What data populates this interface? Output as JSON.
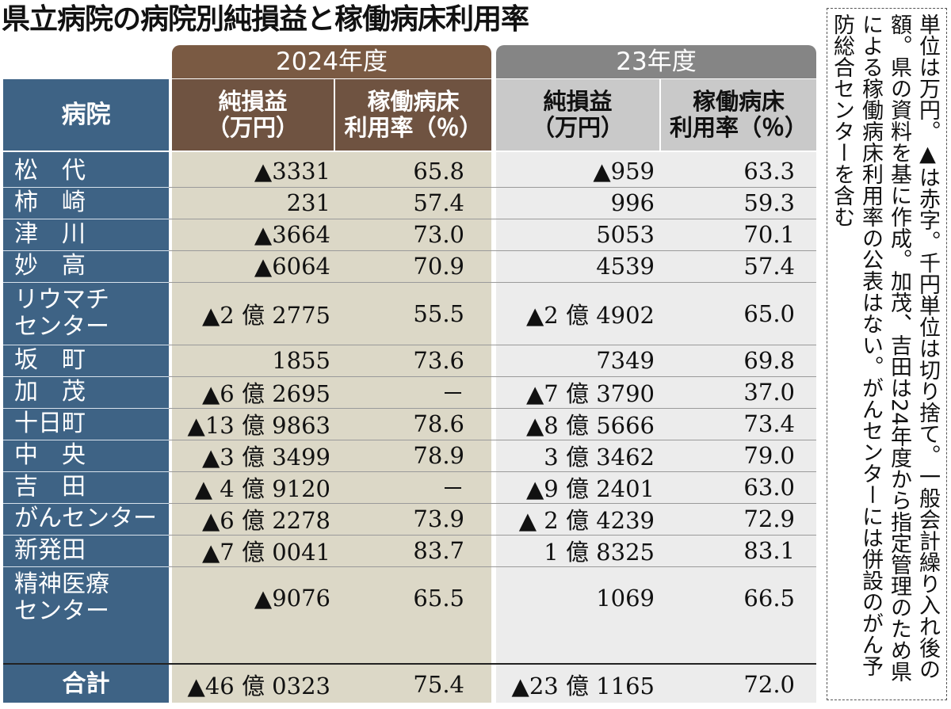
{
  "title": "県立病院の病院別純損益と稼働病床利用率",
  "groups": {
    "fy2024": "2024年度",
    "fy2023": "23年度"
  },
  "headers": {
    "hospital": "病院",
    "net_line1": "純損益",
    "net_line2": "（万円）",
    "rate_line1": "稼働病床",
    "rate_line2": "利用率（％）"
  },
  "rows": [
    {
      "name1": "松　代",
      "name2": "",
      "n24": "▲3331",
      "r24": "65.8",
      "n23": "▲959",
      "r23": "63.3"
    },
    {
      "name1": "柿　崎",
      "name2": "",
      "n24": "231",
      "r24": "57.4",
      "n23": "996",
      "r23": "59.3"
    },
    {
      "name1": "津　川",
      "name2": "",
      "n24": "▲3664",
      "r24": "73.0",
      "n23": "5053",
      "r23": "70.1"
    },
    {
      "name1": "妙　高",
      "name2": "",
      "n24": "▲6064",
      "r24": "70.9",
      "n23": "4539",
      "r23": "57.4"
    },
    {
      "name1": "リウマチ",
      "name2": "センター",
      "n24": "▲2 億 2775",
      "r24": "55.5",
      "n23": "▲2 億 4902",
      "r23": "65.0"
    },
    {
      "name1": "坂　町",
      "name2": "",
      "n24": "1855",
      "r24": "73.6",
      "n23": "7349",
      "r23": "69.8"
    },
    {
      "name1": "加　茂",
      "name2": "",
      "n24": "▲6 億 2695",
      "r24": "－",
      "n23": "▲7 億 3790",
      "r23": "37.0"
    },
    {
      "name1": "十日町",
      "name2": "",
      "n24": "▲13 億 9863",
      "r24": "78.6",
      "n23": "▲8 億 5666",
      "r23": "73.4"
    },
    {
      "name1": "中　央",
      "name2": "",
      "n24": "▲3 億 3499",
      "r24": "78.9",
      "n23": "3 億 3462",
      "r23": "79.0"
    },
    {
      "name1": "吉　田",
      "name2": "",
      "n24": "▲ 4 億 9120",
      "r24": "－",
      "n23": "▲9 億 2401",
      "r23": "63.0"
    },
    {
      "name1": "がんセンター",
      "name2": "",
      "n24": "▲6 億 2278",
      "r24": "73.9",
      "n23": "▲ 2 億 4239",
      "r23": "72.9"
    },
    {
      "name1": "新発田",
      "name2": "",
      "n24": "▲7 億 0041",
      "r24": "83.7",
      "n23": "1 億 8325",
      "r23": "83.1"
    },
    {
      "name1": "精神医療",
      "name2": "センター",
      "n24": "▲9076",
      "r24": "65.5",
      "n23": "1069",
      "r23": "66.5"
    }
  ],
  "total": {
    "name": "合計",
    "n24": "▲46 億 0323",
    "r24": "75.4",
    "n23": "▲23 億 1165",
    "r23": "72.0"
  },
  "note": "単位は万円。▲は赤字。千円単位は切り捨て。一般会計繰り入れ後の額。県の資料を基に作成。加茂、吉田は24年度から指定管理のため県による稼働病床利用率の公表はない。がんセンターには併設のがん予防総合センターを含む"
}
